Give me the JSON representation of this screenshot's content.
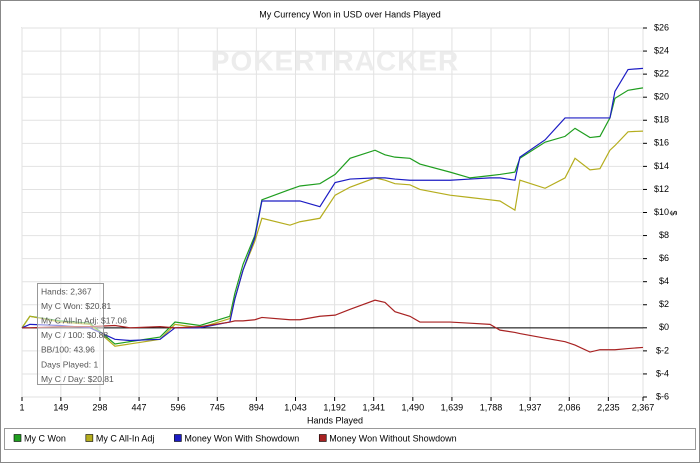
{
  "chart_data": {
    "type": "line",
    "title": "My Currency Won in USD over Hands Played",
    "watermark": "POKERTRACKER",
    "x_label": "Hands Played",
    "y_label": "$",
    "xlim": [
      1,
      2367
    ],
    "ylim": [
      -6,
      26
    ],
    "xticks": [
      1,
      149,
      298,
      447,
      596,
      745,
      894,
      {
        "value": 1043,
        "label": "1,043"
      },
      {
        "value": 1192,
        "label": "1,192"
      },
      {
        "value": 1341,
        "label": "1,341"
      },
      {
        "value": 1490,
        "label": "1,490"
      },
      {
        "value": 1639,
        "label": "1,639"
      },
      {
        "value": 1788,
        "label": "1,788"
      },
      {
        "value": 1937,
        "label": "1,937"
      },
      {
        "value": 2086,
        "label": "2,086"
      },
      {
        "value": 2235,
        "label": "2,235"
      },
      {
        "value": 2367,
        "label": "2,367"
      }
    ],
    "yticks": [
      {
        "value": -6,
        "label": "$-6"
      },
      {
        "value": -4,
        "label": "$-4"
      },
      {
        "value": -2,
        "label": "$-2"
      },
      {
        "value": 0,
        "label": "$0"
      },
      {
        "value": 2,
        "label": "$2"
      },
      {
        "value": 4,
        "label": "$4"
      },
      {
        "value": 6,
        "label": "$6"
      },
      {
        "value": 8,
        "label": "$8"
      },
      {
        "value": 10,
        "label": "$10"
      },
      {
        "value": 12,
        "label": "$12"
      },
      {
        "value": 14,
        "label": "$14"
      },
      {
        "value": 16,
        "label": "$16"
      },
      {
        "value": 18,
        "label": "$18"
      },
      {
        "value": 20,
        "label": "$20"
      },
      {
        "value": 22,
        "label": "$22"
      },
      {
        "value": 24,
        "label": "$24"
      },
      {
        "value": 26,
        "label": "$26"
      }
    ],
    "grid": true,
    "legend_position": "bottom",
    "annotations": [
      "Hands: 2,367",
      "My C Won: $20.81",
      "My C All-In Adj: $17.06",
      "My C / 100: $0.88",
      "BB/100: 43.96",
      "Days Played: 1",
      "My C / Day: $20.81"
    ],
    "x": [
      1,
      31,
      146,
      260,
      355,
      412,
      527,
      584,
      679,
      793,
      812,
      843,
      888,
      915,
      1022,
      1060,
      1136,
      1194,
      1251,
      1346,
      1384,
      1422,
      1479,
      1517,
      1632,
      1708,
      1784,
      1822,
      1879,
      1898,
      1994,
      2070,
      2108,
      2165,
      2203,
      2241,
      2260,
      2310,
      2367
    ],
    "series": [
      {
        "name": "My C Won",
        "color": "#1f9e1f",
        "values": [
          0,
          1,
          0.6,
          0.4,
          -1.4,
          -1.2,
          -0.8,
          0.5,
          0.2,
          1,
          3,
          5.5,
          8,
          11.1,
          12,
          12.3,
          12.5,
          13.3,
          14.7,
          15.4,
          15,
          14.8,
          14.7,
          14.2,
          13.5,
          13,
          13.2,
          13.3,
          13.5,
          14.7,
          16.1,
          16.6,
          17.3,
          16.5,
          16.6,
          18.2,
          19.9,
          20.6,
          20.81
        ]
      },
      {
        "name": "My C All-In Adj",
        "color": "#b5ad1e",
        "values": [
          0,
          1,
          0.5,
          0.3,
          -1.6,
          -1.4,
          -1,
          0.3,
          0,
          0.8,
          2.5,
          5,
          7.5,
          9.5,
          8.9,
          9.2,
          9.5,
          11.5,
          12.2,
          13,
          12.8,
          12.5,
          12.4,
          12,
          11.5,
          11.3,
          11.1,
          11,
          10.2,
          12.8,
          12.1,
          13,
          14.7,
          13.7,
          13.8,
          15.4,
          15.8,
          17,
          17.06
        ]
      },
      {
        "name": "Money Won With Showdown",
        "color": "#1c1cc4",
        "values": [
          0,
          0.3,
          0.2,
          0,
          -1,
          -1.1,
          -1,
          0,
          0,
          0.5,
          2.5,
          5,
          7.8,
          11,
          11,
          11,
          10.5,
          12.6,
          12.9,
          13,
          13,
          12.9,
          12.8,
          12.8,
          12.8,
          12.9,
          13,
          13,
          12.8,
          14.8,
          16.3,
          18.2,
          18.2,
          18.2,
          18.2,
          18.2,
          20.5,
          22.4,
          22.5
        ]
      },
      {
        "name": "Money Won Without Showdown",
        "color": "#a82222",
        "values": [
          0,
          0,
          0.1,
          0.1,
          0.2,
          0,
          0.1,
          0,
          0.1,
          0.5,
          0.6,
          0.6,
          0.7,
          0.9,
          0.7,
          0.7,
          1,
          1.1,
          1.6,
          2.4,
          2.2,
          1.4,
          1,
          0.5,
          0.5,
          0.4,
          0.3,
          -0.2,
          -0.4,
          -0.5,
          -0.9,
          -1.2,
          -1.5,
          -2.1,
          -1.9,
          -1.9,
          -1.9,
          -1.8,
          -1.7
        ]
      }
    ]
  }
}
